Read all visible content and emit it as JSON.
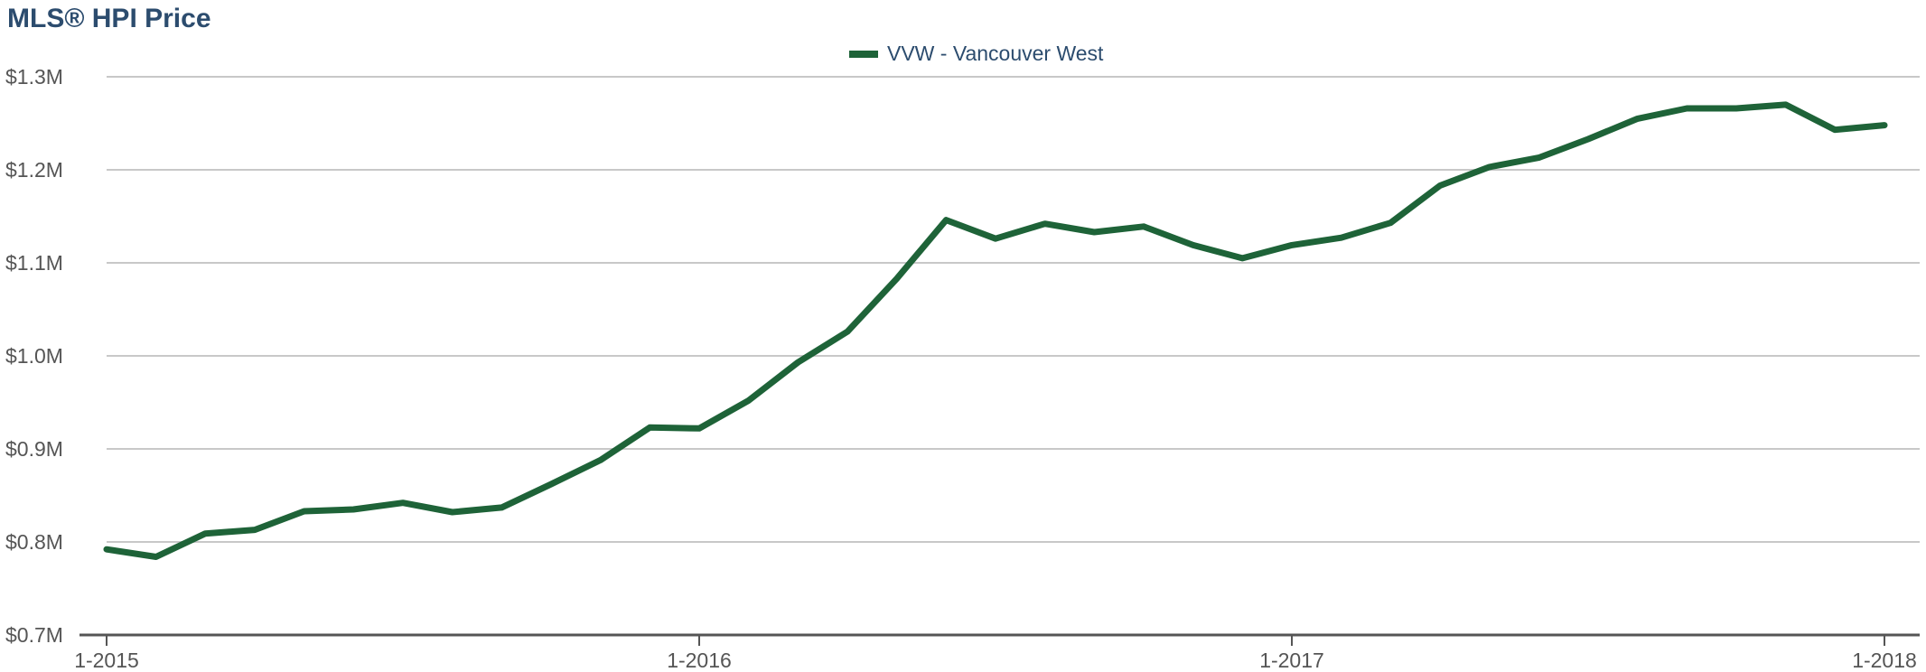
{
  "title": "MLS® HPI Price",
  "colors": {
    "series": "#1e6338",
    "title": "#2c4c6e",
    "grid": "#c8c8c8",
    "axis": "#555555"
  },
  "chart_data": {
    "type": "line",
    "title": "MLS® HPI Price",
    "xlabel": "",
    "ylabel": "",
    "grid": true,
    "legend_position": "top-center",
    "x_tick_labels": [
      "1-2015",
      "1-2016",
      "1-2017",
      "1-2018"
    ],
    "y_tick_labels": [
      "$0.7M",
      "$0.8M",
      "$0.9M",
      "$1.0M",
      "$1.1M",
      "$1.2M",
      "$1.3M"
    ],
    "ylim": [
      0.7,
      1.3
    ],
    "y_unit": "$M",
    "x": [
      "2015-01",
      "2015-02",
      "2015-03",
      "2015-04",
      "2015-05",
      "2015-06",
      "2015-07",
      "2015-08",
      "2015-09",
      "2015-10",
      "2015-11",
      "2015-12",
      "2016-01",
      "2016-02",
      "2016-03",
      "2016-04",
      "2016-05",
      "2016-06",
      "2016-07",
      "2016-08",
      "2016-09",
      "2016-10",
      "2016-11",
      "2016-12",
      "2017-01",
      "2017-02",
      "2017-03",
      "2017-04",
      "2017-05",
      "2017-06",
      "2017-07",
      "2017-08",
      "2017-09",
      "2017-10",
      "2017-11",
      "2017-12",
      "2018-01"
    ],
    "series": [
      {
        "name": "VVW - Vancouver West",
        "values": [
          0.792,
          0.784,
          0.809,
          0.813,
          0.833,
          0.835,
          0.842,
          0.832,
          0.837,
          0.862,
          0.888,
          0.923,
          0.922,
          0.952,
          0.993,
          1.026,
          1.083,
          1.146,
          1.126,
          1.142,
          1.133,
          1.139,
          1.119,
          1.105,
          1.119,
          1.127,
          1.143,
          1.183,
          1.203,
          1.213,
          1.233,
          1.255,
          1.266,
          1.266,
          1.27,
          1.243,
          1.248
        ]
      }
    ]
  }
}
